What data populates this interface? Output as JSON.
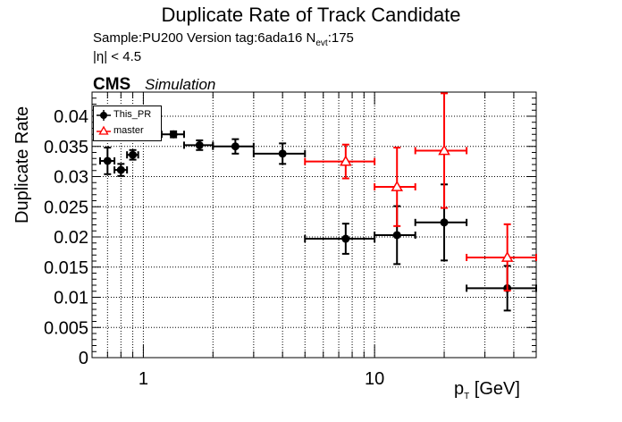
{
  "title": "Duplicate Rate of Track Candidate",
  "info": {
    "sample_line_prefix": "Sample:PU200   Version tag:6ada16  N",
    "nevt_sub": "evt",
    "nevt_value": ":175",
    "eta_cut": "|η| < 4.5"
  },
  "cms_label": "CMS",
  "sim_label": "Simulation",
  "chart_data": {
    "type": "scatter",
    "title": "Duplicate Rate of Track Candidate",
    "xlabel_main": "p",
    "xlabel_sub": "T",
    "xlabel_unit": " [GeV]",
    "ylabel": "Duplicate Rate",
    "xscale": "log",
    "xlim": [
      0.6,
      50
    ],
    "ylim": [
      0,
      0.044
    ],
    "grid": true,
    "legend_position": "top-left",
    "x_ticks": [
      {
        "value": 1,
        "label": "1"
      },
      {
        "value": 10,
        "label": "10"
      }
    ],
    "y_ticks": [
      {
        "value": 0,
        "label": "0"
      },
      {
        "value": 0.005,
        "label": "0.005"
      },
      {
        "value": 0.01,
        "label": "0.01"
      },
      {
        "value": 0.015,
        "label": "0.015"
      },
      {
        "value": 0.02,
        "label": "0.02"
      },
      {
        "value": 0.025,
        "label": "0.025"
      },
      {
        "value": 0.03,
        "label": "0.03"
      },
      {
        "value": 0.035,
        "label": "0.035"
      },
      {
        "value": 0.04,
        "label": "0.04"
      }
    ],
    "series": [
      {
        "name": "This_PR",
        "color": "#000000",
        "marker": "filled-circle",
        "points": [
          {
            "x": 0.7,
            "xlo": 0.65,
            "xhi": 0.75,
            "y": 0.0326,
            "yerr": 0.0022
          },
          {
            "x": 0.8,
            "xlo": 0.75,
            "xhi": 0.85,
            "y": 0.0311,
            "yerr": 0.001
          },
          {
            "x": 0.9,
            "xlo": 0.85,
            "xhi": 0.95,
            "y": 0.0336,
            "yerr": 0.0008
          },
          {
            "x": 1.35,
            "xlo": 1.2,
            "xhi": 1.5,
            "y": 0.037,
            "yerr": 0.0005
          },
          {
            "x": 1.75,
            "xlo": 1.5,
            "xhi": 2.0,
            "y": 0.0352,
            "yerr": 0.0008
          },
          {
            "x": 2.5,
            "xlo": 2.0,
            "xhi": 3.0,
            "y": 0.035,
            "yerr": 0.0012
          },
          {
            "x": 4.0,
            "xlo": 3.0,
            "xhi": 5.0,
            "y": 0.0338,
            "yerr": 0.0017
          },
          {
            "x": 7.5,
            "xlo": 5.0,
            "xhi": 10.0,
            "y": 0.0197,
            "yerr": 0.0025
          },
          {
            "x": 12.5,
            "xlo": 10.0,
            "xhi": 15.0,
            "y": 0.0203,
            "yerr": 0.0048
          },
          {
            "x": 20.0,
            "xlo": 15.0,
            "xhi": 25.0,
            "y": 0.0224,
            "yerr": 0.0063
          },
          {
            "x": 37.5,
            "xlo": 25.0,
            "xhi": 50.0,
            "y": 0.0115,
            "yerr": 0.0037
          }
        ]
      },
      {
        "name": "master",
        "color": "#ff0000",
        "marker": "open-triangle",
        "points": [
          {
            "x": 7.5,
            "xlo": 5.0,
            "xhi": 10.0,
            "y": 0.0325,
            "yerr": 0.0028
          },
          {
            "x": 12.5,
            "xlo": 10.0,
            "xhi": 15.0,
            "y": 0.0283,
            "yerr": 0.0065
          },
          {
            "x": 20.0,
            "xlo": 15.0,
            "xhi": 25.0,
            "y": 0.0343,
            "yerr": 0.0095
          },
          {
            "x": 37.5,
            "xlo": 25.0,
            "xhi": 50.0,
            "y": 0.0166,
            "yerr": 0.0055
          }
        ]
      }
    ]
  }
}
